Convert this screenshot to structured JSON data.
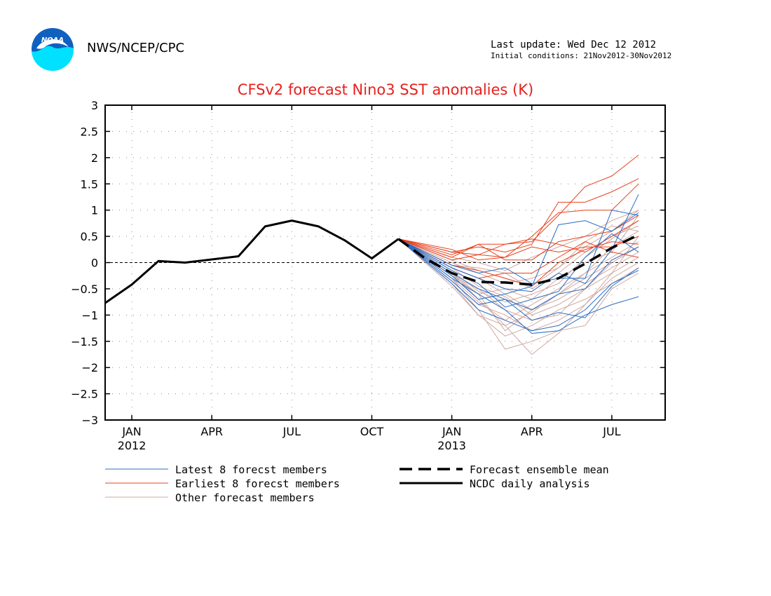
{
  "header": {
    "logo_text": "NOAA",
    "org": "NWS/NCEP/CPC",
    "last_update": "Last update: Wed Dec 12 2012",
    "initial_conditions": "Initial conditions: 21Nov2012-30Nov2012"
  },
  "colors": {
    "title": "#e8201c",
    "latest": "#2a6cc4",
    "earliest": "#e8401c",
    "other": "#d0a8a0",
    "analysis": "#000000",
    "zero_line": "#000000",
    "grid": "#888888",
    "logo_blue": "#1060c0",
    "logo_cyan": "#00e0ff"
  },
  "chart_data": {
    "type": "line",
    "title": "CFSv2 forecast Nino3 SST anomalies (K)",
    "xlabel": "",
    "ylabel": "",
    "ylim": [
      -3,
      3
    ],
    "yticks": [
      3,
      2.5,
      2,
      1.5,
      1,
      0.5,
      0,
      -0.5,
      -1,
      -1.5,
      -2,
      -2.5,
      -3
    ],
    "ytick_labels": [
      "3",
      "2.5",
      "2",
      "1.5",
      "1",
      "0.5",
      "0",
      "−0.5",
      "−1",
      "−1.5",
      "−2",
      "−2.5",
      "−3"
    ],
    "xlim": [
      "2011-12",
      "2013-09"
    ],
    "xticks": [
      {
        "month": "2012-01",
        "label": "JAN",
        "year": "2012"
      },
      {
        "month": "2012-04",
        "label": "APR",
        "year": ""
      },
      {
        "month": "2012-07",
        "label": "JUL",
        "year": ""
      },
      {
        "month": "2012-10",
        "label": "OCT",
        "year": ""
      },
      {
        "month": "2013-01",
        "label": "JAN",
        "year": "2013"
      },
      {
        "month": "2013-04",
        "label": "APR",
        "year": ""
      },
      {
        "month": "2013-07",
        "label": "JUL",
        "year": ""
      }
    ],
    "x_months": [
      "2013-01",
      "2013-02",
      "2013-03",
      "2013-04",
      "2013-05",
      "2013-06",
      "2013-07",
      "2013-08"
    ],
    "forecast_start": {
      "month": "2012-11",
      "value": 0.45
    },
    "grid": true,
    "zero_line": "dashed",
    "legend": {
      "placement": "bottom",
      "latest": "Latest 8 forecst members",
      "earliest": "Earliest 8 forecst members",
      "other": "Other forecast members",
      "mean": "Forecast ensemble mean",
      "analysis": "NCDC daily analysis"
    },
    "analysis": {
      "name": "NCDC daily analysis",
      "points": [
        [
          "2011-12",
          -0.77
        ],
        [
          "2012-01",
          -0.42
        ],
        [
          "2012-02",
          0.03
        ],
        [
          "2012-03",
          0.0
        ],
        [
          "2012-04",
          0.06
        ],
        [
          "2012-05",
          0.12
        ],
        [
          "2012-06",
          0.69
        ],
        [
          "2012-07",
          0.8
        ],
        [
          "2012-08",
          0.69
        ],
        [
          "2012-09",
          0.42
        ],
        [
          "2012-10",
          0.08
        ],
        [
          "2012-11",
          0.45
        ]
      ]
    },
    "ensemble_mean": {
      "name": "Forecast ensemble mean",
      "points": [
        [
          "2012-11",
          0.45
        ],
        [
          "2012-12",
          0.08
        ],
        [
          "2013-01",
          -0.2
        ],
        [
          "2013-02",
          -0.37
        ],
        [
          "2013-03",
          -0.38
        ],
        [
          "2013-04",
          -0.42
        ],
        [
          "2013-05",
          -0.3
        ],
        [
          "2013-06",
          -0.02
        ],
        [
          "2013-07",
          0.28
        ],
        [
          "2013-08",
          0.53
        ]
      ]
    },
    "latest_members": [
      [
        -0.3,
        -0.6,
        -0.9,
        -1.35,
        -1.3,
        -1.0,
        -0.8,
        -0.65
      ],
      [
        -0.2,
        -0.5,
        -0.7,
        -1.1,
        -0.95,
        -1.05,
        -0.45,
        -0.1
      ],
      [
        -0.1,
        -0.3,
        -0.5,
        -0.55,
        -0.2,
        -0.4,
        0.25,
        1.3
      ],
      [
        -0.25,
        -0.7,
        -0.6,
        -0.45,
        0.72,
        0.8,
        0.6,
        0.95
      ],
      [
        -0.15,
        -0.4,
        -0.85,
        -0.7,
        -0.55,
        0.1,
        0.55,
        0.2
      ],
      [
        -0.35,
        -0.8,
        -0.7,
        -0.9,
        -0.6,
        -0.5,
        0.05,
        0.3
      ],
      [
        -0.05,
        -0.2,
        -0.1,
        -0.4,
        -0.3,
        -0.3,
        1.0,
        0.9
      ],
      [
        -0.4,
        -0.9,
        -1.1,
        -1.3,
        -1.2,
        -0.9,
        -0.4,
        -0.15
      ]
    ],
    "earliest_members": [
      [
        0.1,
        0.35,
        0.35,
        0.4,
        0.9,
        1.45,
        1.65,
        2.05
      ],
      [
        0.2,
        0.3,
        0.2,
        0.35,
        1.15,
        1.15,
        1.35,
        1.6
      ],
      [
        0.05,
        0.15,
        0.1,
        0.5,
        0.95,
        1.0,
        1.0,
        1.5
      ],
      [
        0.15,
        0.35,
        0.05,
        0.05,
        0.4,
        0.5,
        0.6,
        0.9
      ],
      [
        -0.05,
        -0.15,
        -0.3,
        -0.45,
        0.0,
        0.25,
        0.4,
        0.35
      ],
      [
        0.25,
        0.05,
        0.1,
        0.3,
        0.2,
        0.3,
        0.3,
        0.5
      ],
      [
        -0.1,
        -0.3,
        -0.2,
        -0.2,
        0.1,
        0.4,
        0.2,
        0.1
      ],
      [
        0.2,
        0.15,
        0.35,
        0.45,
        0.35,
        0.2,
        0.5,
        0.8
      ]
    ],
    "other_members": [
      [
        -0.3,
        -0.9,
        -1.65,
        -1.5,
        -1.3,
        -1.2,
        -0.5,
        -0.2
      ],
      [
        -0.2,
        -0.7,
        -1.2,
        -1.75,
        -1.35,
        -0.8,
        -0.2,
        0.1
      ],
      [
        -0.4,
        -1.0,
        -1.4,
        -1.2,
        -0.9,
        -0.7,
        -0.4,
        -0.1
      ],
      [
        -0.25,
        -0.5,
        -0.9,
        -1.1,
        -1.0,
        -0.5,
        0.0,
        0.3
      ],
      [
        -0.1,
        -0.3,
        -0.6,
        -0.9,
        -0.6,
        -0.2,
        0.3,
        0.6
      ],
      [
        -0.15,
        -0.55,
        -0.75,
        -0.6,
        -0.4,
        0.1,
        0.45,
        0.8
      ],
      [
        0.0,
        -0.2,
        -0.4,
        -0.3,
        -0.1,
        0.3,
        0.6,
        1.0
      ],
      [
        -0.35,
        -0.8,
        -1.0,
        -1.3,
        -1.1,
        -0.8,
        -0.3,
        0.0
      ],
      [
        -0.05,
        -0.1,
        -0.2,
        -0.5,
        -0.2,
        0.2,
        0.5,
        0.7
      ],
      [
        -0.2,
        -0.6,
        -1.3,
        -0.9,
        -0.7,
        -0.4,
        -0.1,
        0.2
      ],
      [
        0.1,
        0.0,
        -0.15,
        0.1,
        0.3,
        0.5,
        0.8,
        1.0
      ],
      [
        -0.3,
        -0.75,
        -1.1,
        -0.8,
        -0.5,
        -0.2,
        0.1,
        0.4
      ],
      [
        -0.1,
        -0.45,
        -0.65,
        -1.0,
        -0.8,
        -0.5,
        -0.2,
        0.5
      ],
      [
        -0.25,
        -0.6,
        -0.5,
        -0.7,
        -0.3,
        0.0,
        0.2,
        0.9
      ],
      [
        0.05,
        -0.15,
        -0.3,
        -0.45,
        -0.1,
        0.4,
        0.7,
        0.6
      ],
      [
        -0.45,
        -1.0,
        -1.2,
        -0.95,
        -0.6,
        -0.3,
        0.0,
        0.3
      ]
    ]
  }
}
